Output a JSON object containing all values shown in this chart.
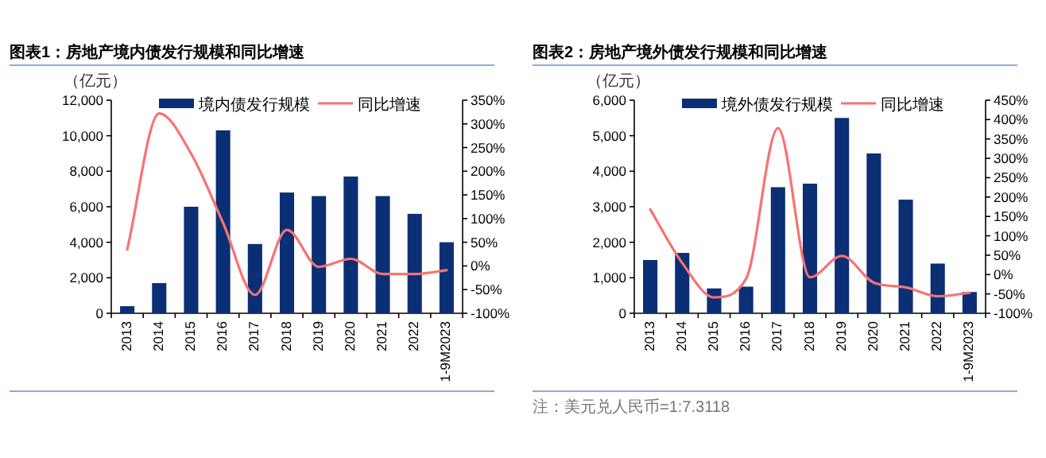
{
  "chart_data": [
    {
      "type": "bar",
      "title": "图表1：房地产境内债发行规模和同比增速",
      "ylabel": "（亿元）",
      "categories": [
        "2013",
        "2014",
        "2015",
        "2016",
        "2017",
        "2018",
        "2019",
        "2020",
        "2021",
        "2022",
        "1-9M2023"
      ],
      "series": [
        {
          "name": "境内债发行规模",
          "color": "#0b2f74",
          "values": [
            400,
            1700,
            6000,
            10300,
            3900,
            6800,
            6600,
            7700,
            6600,
            5600,
            4000
          ]
        },
        {
          "name": "同比增速",
          "type": "line",
          "axis": "y2",
          "color": "#f87272",
          "values": [
            35,
            322,
            237,
            91,
            -61,
            76,
            -2,
            15,
            -17,
            -17,
            -9
          ]
        }
      ],
      "ylim": [
        0,
        12000
      ],
      "yticks": [
        0,
        {
          "value": 2000,
          "label": "2,000"
        },
        {
          "value": 4000,
          "label": "4,000"
        },
        {
          "value": 6000,
          "label": "6,000"
        },
        {
          "value": 8000,
          "label": "8,000"
        },
        {
          "value": 10000,
          "label": "10,000"
        },
        {
          "value": 12000,
          "label": "12,000"
        }
      ],
      "y2lim": [
        -100,
        350
      ],
      "y2ticks": [
        {
          "value": -100,
          "label": "-100%"
        },
        {
          "value": -50,
          "label": "-50%"
        },
        {
          "value": 0,
          "label": "0%"
        },
        {
          "value": 50,
          "label": "50%"
        },
        {
          "value": 100,
          "label": "100%"
        },
        {
          "value": 150,
          "label": "150%"
        },
        {
          "value": 200,
          "label": "200%"
        },
        {
          "value": 250,
          "label": "250%"
        },
        {
          "value": 300,
          "label": "300%"
        },
        {
          "value": 350,
          "label": "350%"
        }
      ],
      "legend": "top",
      "grid": false
    },
    {
      "type": "bar",
      "title": "图表2：房地产境外债发行规模和同比增速",
      "ylabel": "（亿元）",
      "categories": [
        "2013",
        "2014",
        "2015",
        "2016",
        "2017",
        "2018",
        "2019",
        "2020",
        "2021",
        "2022",
        "1-9M2023"
      ],
      "series": [
        {
          "name": "境外债发行规模",
          "color": "#0b2f74",
          "values": [
            1500,
            1700,
            700,
            750,
            3550,
            3650,
            5500,
            4500,
            3200,
            1400,
            600
          ]
        },
        {
          "name": "同比增速",
          "type": "line",
          "axis": "y2",
          "color": "#f87272",
          "values": [
            168,
            30,
            -59,
            -11,
            378,
            -7,
            48,
            -21,
            -33,
            -56,
            -47
          ]
        }
      ],
      "ylim": [
        0,
        6000
      ],
      "yticks": [
        0,
        {
          "value": 1000,
          "label": "1,000"
        },
        {
          "value": 2000,
          "label": "2,000"
        },
        {
          "value": 3000,
          "label": "3,000"
        },
        {
          "value": 4000,
          "label": "4,000"
        },
        {
          "value": 5000,
          "label": "5,000"
        },
        {
          "value": 6000,
          "label": "6,000"
        }
      ],
      "y2lim": [
        -100,
        450
      ],
      "y2ticks": [
        {
          "value": -100,
          "label": "-100%"
        },
        {
          "value": -50,
          "label": "-50%"
        },
        {
          "value": 0,
          "label": "0%"
        },
        {
          "value": 50,
          "label": "50%"
        },
        {
          "value": 100,
          "label": "100%"
        },
        {
          "value": 150,
          "label": "150%"
        },
        {
          "value": 200,
          "label": "200%"
        },
        {
          "value": 250,
          "label": "250%"
        },
        {
          "value": 300,
          "label": "300%"
        },
        {
          "value": 350,
          "label": "350%"
        },
        {
          "value": 400,
          "label": "400%"
        },
        {
          "value": 450,
          "label": "450%"
        }
      ],
      "annotations": [
        "注：美元兑人民币=1:7.3118"
      ],
      "legend": "top",
      "grid": false
    }
  ]
}
